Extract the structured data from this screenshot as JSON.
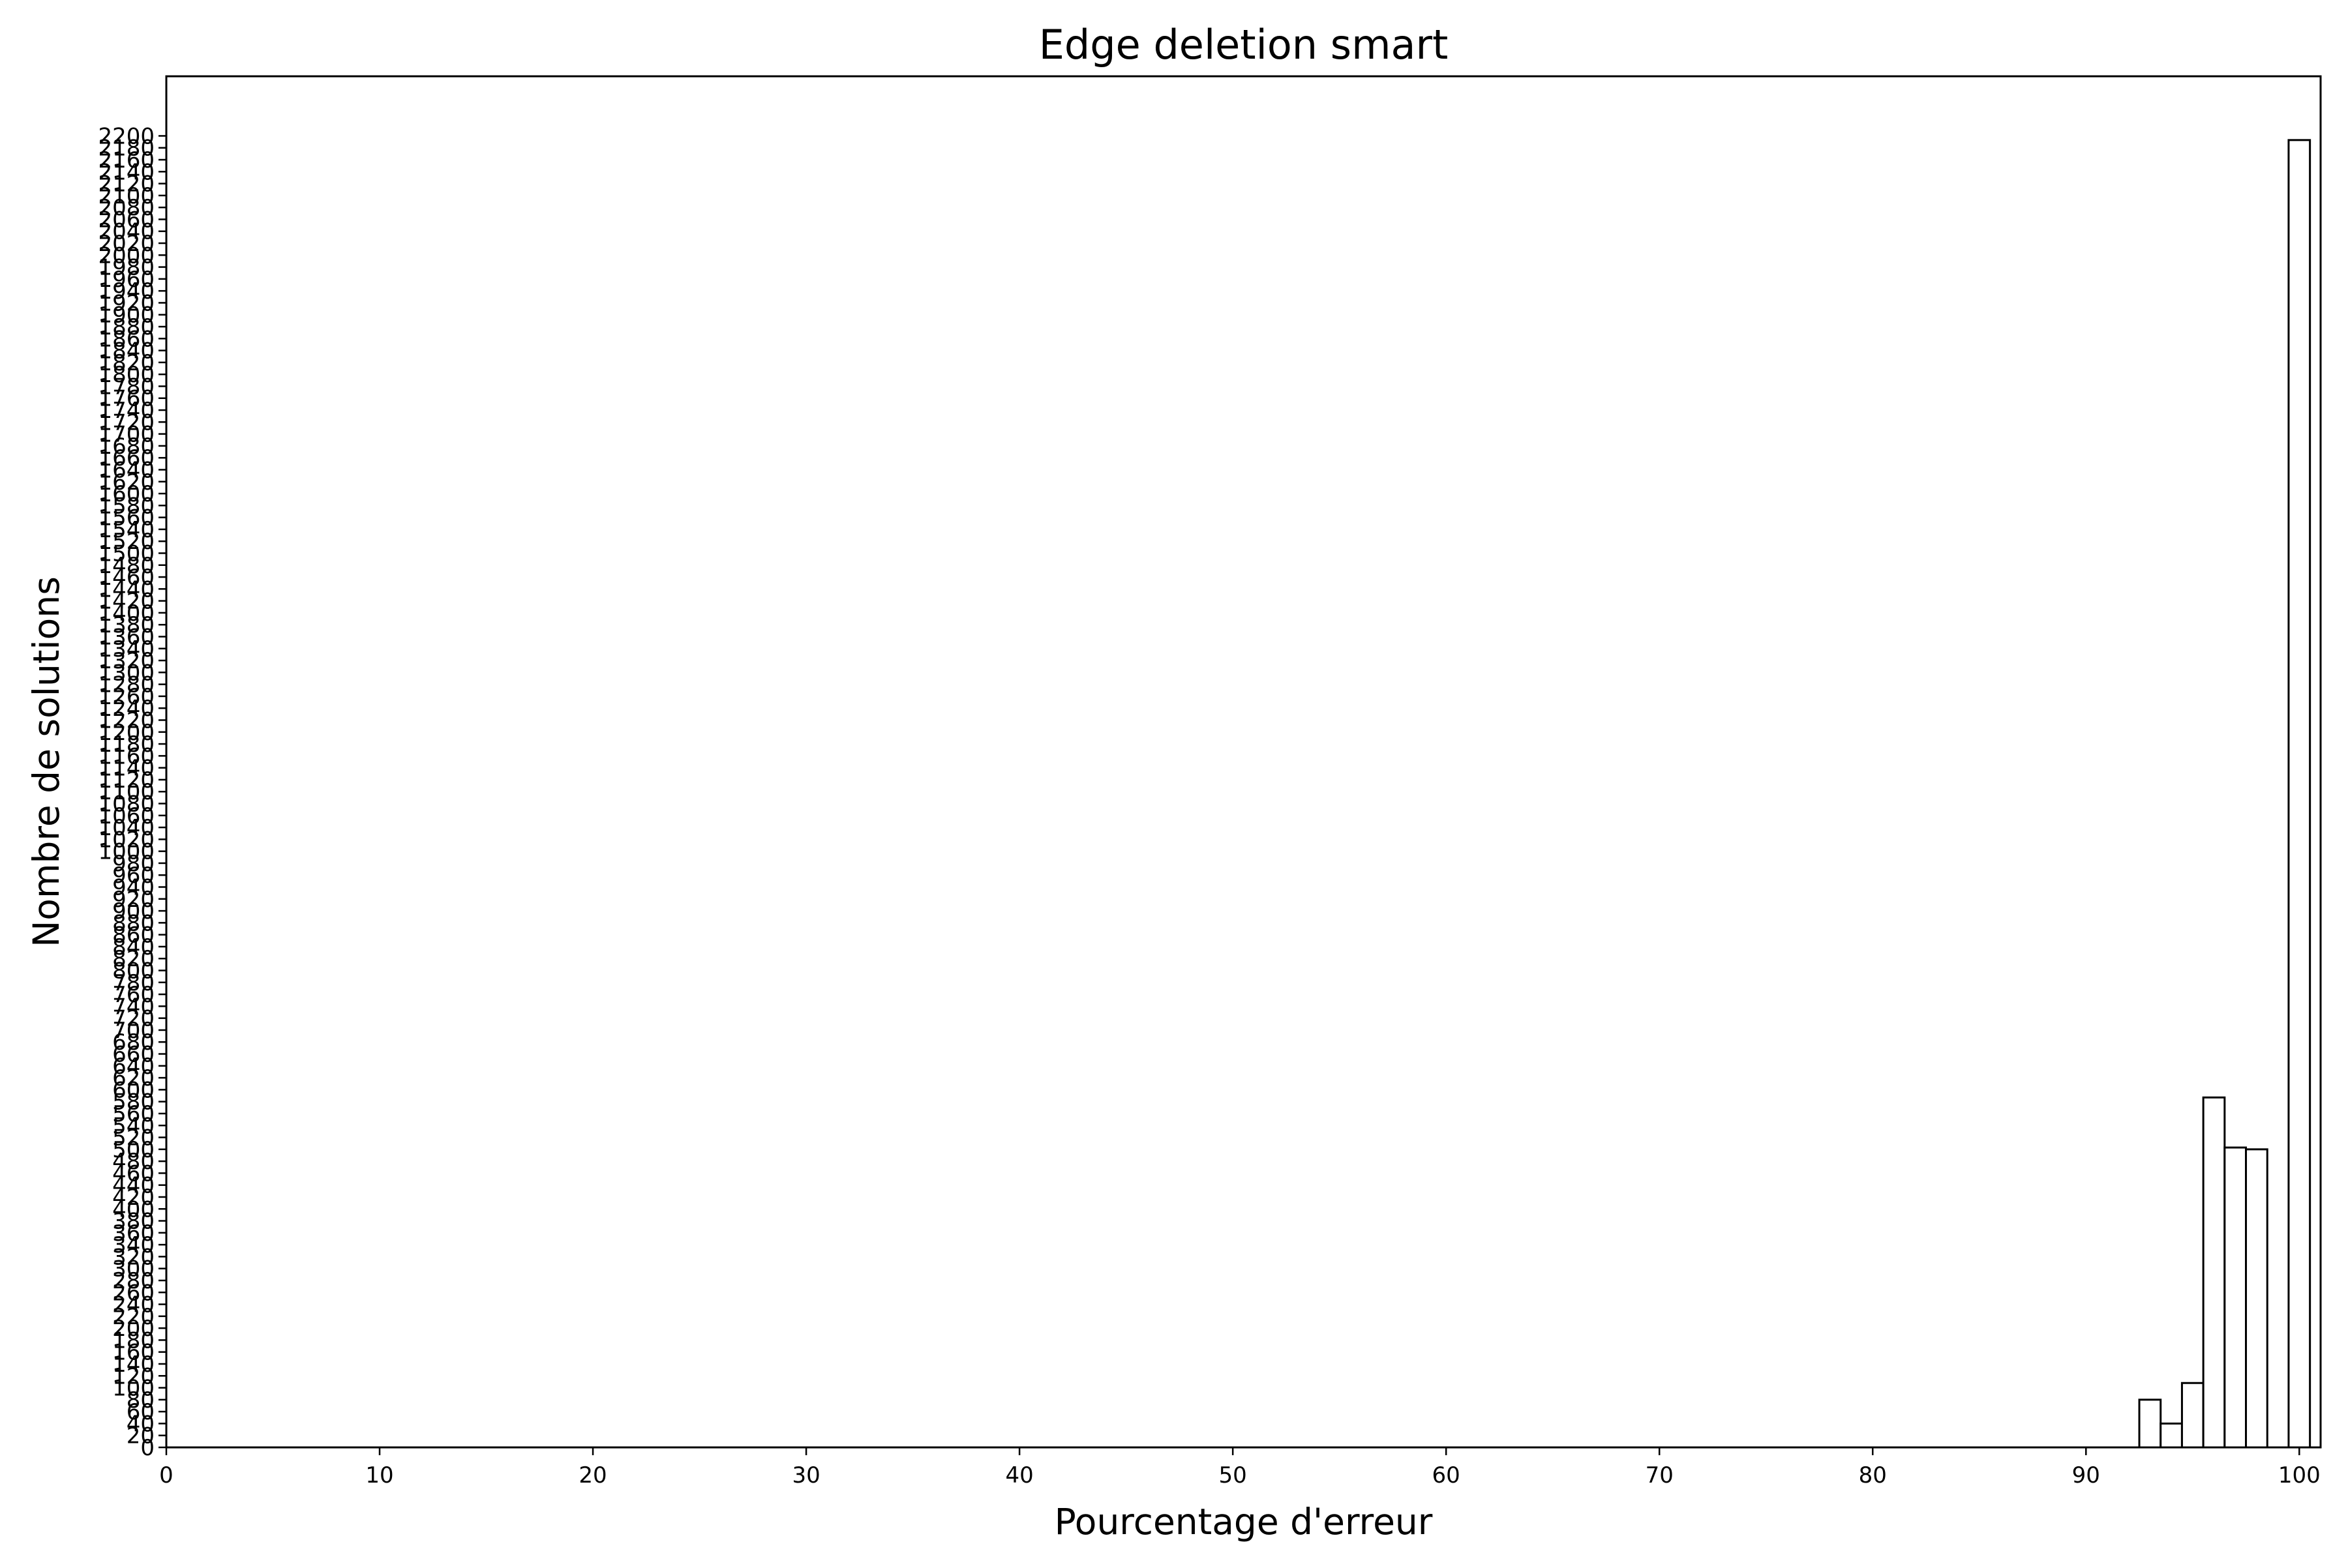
{
  "chart_data": {
    "type": "bar",
    "title": "Edge deletion smart",
    "xlabel": "Pourcentage d'erreur",
    "ylabel": "Nombre de solutions",
    "xlim": [
      0,
      101
    ],
    "ylim": [
      0,
      2300
    ],
    "x_ticks": [
      0,
      10,
      20,
      30,
      40,
      50,
      60,
      70,
      80,
      90,
      100
    ],
    "y_ticks": [
      0,
      20,
      40,
      60,
      80,
      100,
      120,
      140,
      160,
      180,
      200,
      220,
      240,
      260,
      280,
      300,
      320,
      340,
      360,
      380,
      400,
      420,
      440,
      460,
      480,
      500,
      520,
      540,
      560,
      580,
      600,
      620,
      640,
      660,
      680,
      700,
      720,
      740,
      760,
      780,
      800,
      820,
      840,
      860,
      880,
      900,
      920,
      940,
      960,
      980,
      1000,
      1020,
      1040,
      1060,
      1080,
      1100,
      1120,
      1140,
      1160,
      1180,
      1200,
      1220,
      1240,
      1260,
      1280,
      1300,
      1320,
      1340,
      1360,
      1380,
      1400,
      1420,
      1440,
      1460,
      1480,
      1500,
      1520,
      1540,
      1560,
      1580,
      1600,
      1620,
      1640,
      1660,
      1680,
      1700,
      1720,
      1740,
      1760,
      1780,
      1800,
      1820,
      1840,
      1860,
      1880,
      1900,
      1920,
      1940,
      1960,
      1980,
      2000,
      2020,
      2040,
      2060,
      2080,
      2100,
      2120,
      2140,
      2160,
      2180,
      2200
    ],
    "bar_width": 1,
    "bins": [
      {
        "x": 93,
        "value": 80
      },
      {
        "x": 94,
        "value": 40
      },
      {
        "x": 95,
        "value": 108
      },
      {
        "x": 96,
        "value": 587
      },
      {
        "x": 97,
        "value": 503
      },
      {
        "x": 98,
        "value": 500
      },
      {
        "x": 100,
        "value": 2193
      }
    ],
    "grid": false,
    "bar_fill": "#ffffff",
    "bar_edge": "#000000"
  }
}
